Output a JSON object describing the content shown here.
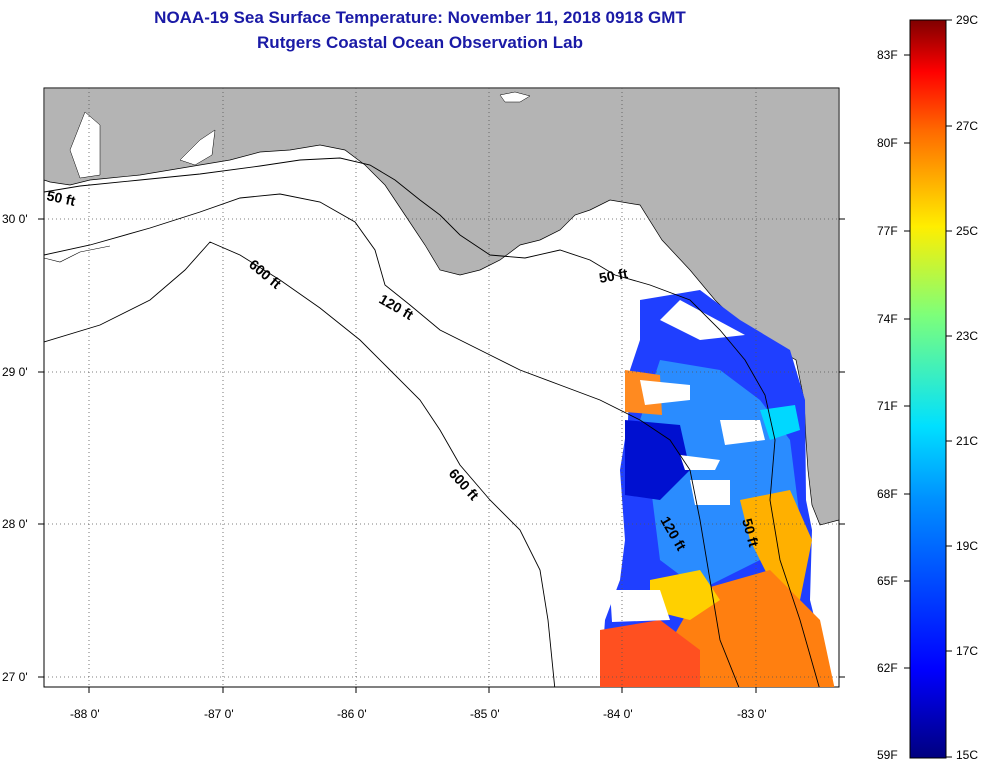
{
  "title": {
    "line1": "NOAA-19 Sea Surface Temperature:  November 11, 2018 0918 GMT",
    "line2": "Rutgers Coastal Ocean Observation Lab"
  },
  "axes": {
    "lat_labels": [
      "30 0'",
      "29 0'",
      "28 0'",
      "27 0'"
    ],
    "lon_labels": [
      "-88 0'",
      "-87 0'",
      "-86 0'",
      "-85 0'",
      "-84 0'",
      "-83 0'"
    ]
  },
  "contours": {
    "label_50": "50 ft",
    "label_120": "120 ft",
    "label_600": "600 ft"
  },
  "colorbar": {
    "fahrenheit": [
      "83F",
      "80F",
      "77F",
      "74F",
      "71F",
      "68F",
      "65F",
      "62F",
      "59F"
    ],
    "celsius": [
      "29C",
      "27C",
      "25C",
      "23C",
      "21C",
      "19C",
      "17C",
      "15C"
    ]
  },
  "colors": {
    "land": "#b4b4b4",
    "title": "#1a1aa6"
  }
}
